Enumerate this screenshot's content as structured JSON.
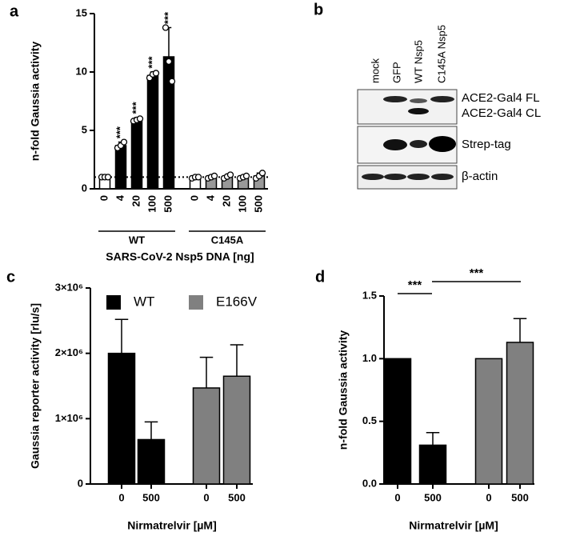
{
  "chart_data": [
    {
      "type": "bar",
      "panel_label": "a",
      "y_label": "n-fold Gaussia activity",
      "x_label": "SARS-CoV-2 Nsp5 DNA [ng]",
      "categories": [
        "0",
        "4",
        "20",
        "100",
        "500"
      ],
      "series": [
        {
          "name": "WT",
          "colors": [
            "#ffffff",
            "#000000",
            "#000000",
            "#000000",
            "#000000"
          ],
          "values": [
            1.0,
            3.7,
            5.9,
            9.7,
            11.3
          ],
          "errors": [
            0.1,
            0.3,
            0.2,
            0.3,
            2.5
          ],
          "points": [
            [
              1.0,
              1.0,
              1.0
            ],
            [
              3.5,
              3.7,
              4.0
            ],
            [
              5.8,
              5.9,
              6.0
            ],
            [
              9.5,
              9.8,
              9.9
            ],
            [
              13.8,
              10.9,
              9.2
            ]
          ],
          "value_labels": [
            null,
            "***",
            "***",
            "***",
            "***"
          ]
        },
        {
          "name": "C145A",
          "colors": [
            "#ffffff",
            "#999999",
            "#999999",
            "#999999",
            "#999999"
          ],
          "values": [
            1.0,
            1.0,
            1.05,
            1.0,
            1.1
          ],
          "errors": [
            0.1,
            0.15,
            0.15,
            0.15,
            0.25
          ],
          "points": [
            [
              0.9,
              1.0,
              1.0
            ],
            [
              0.9,
              1.0,
              1.1
            ],
            [
              0.9,
              1.05,
              1.2
            ],
            [
              0.9,
              1.0,
              1.1
            ],
            [
              0.9,
              1.1,
              1.35
            ]
          ]
        }
      ],
      "reference_line": 1,
      "ylim": [
        0,
        15
      ],
      "yticks": [
        0,
        5,
        10,
        15
      ]
    },
    {
      "type": "bar",
      "panel_label": "c",
      "y_label": "Gaussia reporter activity [rlu/s]",
      "x_label": "Nirmatrelvir [µM]",
      "categories": [
        "0",
        "500"
      ],
      "series": [
        {
          "name": "WT",
          "color": "#000000",
          "values": [
            2000000,
            680000
          ],
          "errors": [
            520000,
            270000
          ]
        },
        {
          "name": "E166V",
          "color": "#808080",
          "values": [
            1470000,
            1650000
          ],
          "errors": [
            470000,
            480000
          ]
        }
      ],
      "legend": "top",
      "ylim": [
        0,
        3000000
      ],
      "yticks": [
        0,
        {
          "value": 1000000,
          "label": "1×10⁶"
        },
        {
          "value": 2000000,
          "label": "2×10⁶"
        },
        {
          "value": 3000000,
          "label": "3×10⁶"
        }
      ]
    },
    {
      "type": "bar",
      "panel_label": "d",
      "y_label": "n-fold Gaussia activity",
      "x_label": "Nirmatrelvir [µM]",
      "categories": [
        "0",
        "500"
      ],
      "series": [
        {
          "color": "#000000",
          "values": [
            1.0,
            0.31
          ],
          "errors": [
            null,
            0.1
          ]
        },
        {
          "color": "#808080",
          "values": [
            1.0,
            1.13
          ],
          "errors": [
            null,
            0.19
          ]
        }
      ],
      "annotations": [
        "***",
        "***"
      ],
      "ylim": [
        0,
        1.5
      ],
      "yticks": [
        {
          "value": 0,
          "label": "0.0"
        },
        0.5,
        {
          "value": 1,
          "label": "1.0"
        },
        1.5
      ]
    }
  ],
  "blot": {
    "panel_label": "b",
    "lanes": [
      "mock",
      "GFP",
      "WT Nsp5",
      "C145A Nsp5"
    ],
    "rows": [
      "ACE2-Gal4 FL",
      "ACE2-Gal4 CL",
      "Strep-tag",
      "β-actin"
    ]
  }
}
